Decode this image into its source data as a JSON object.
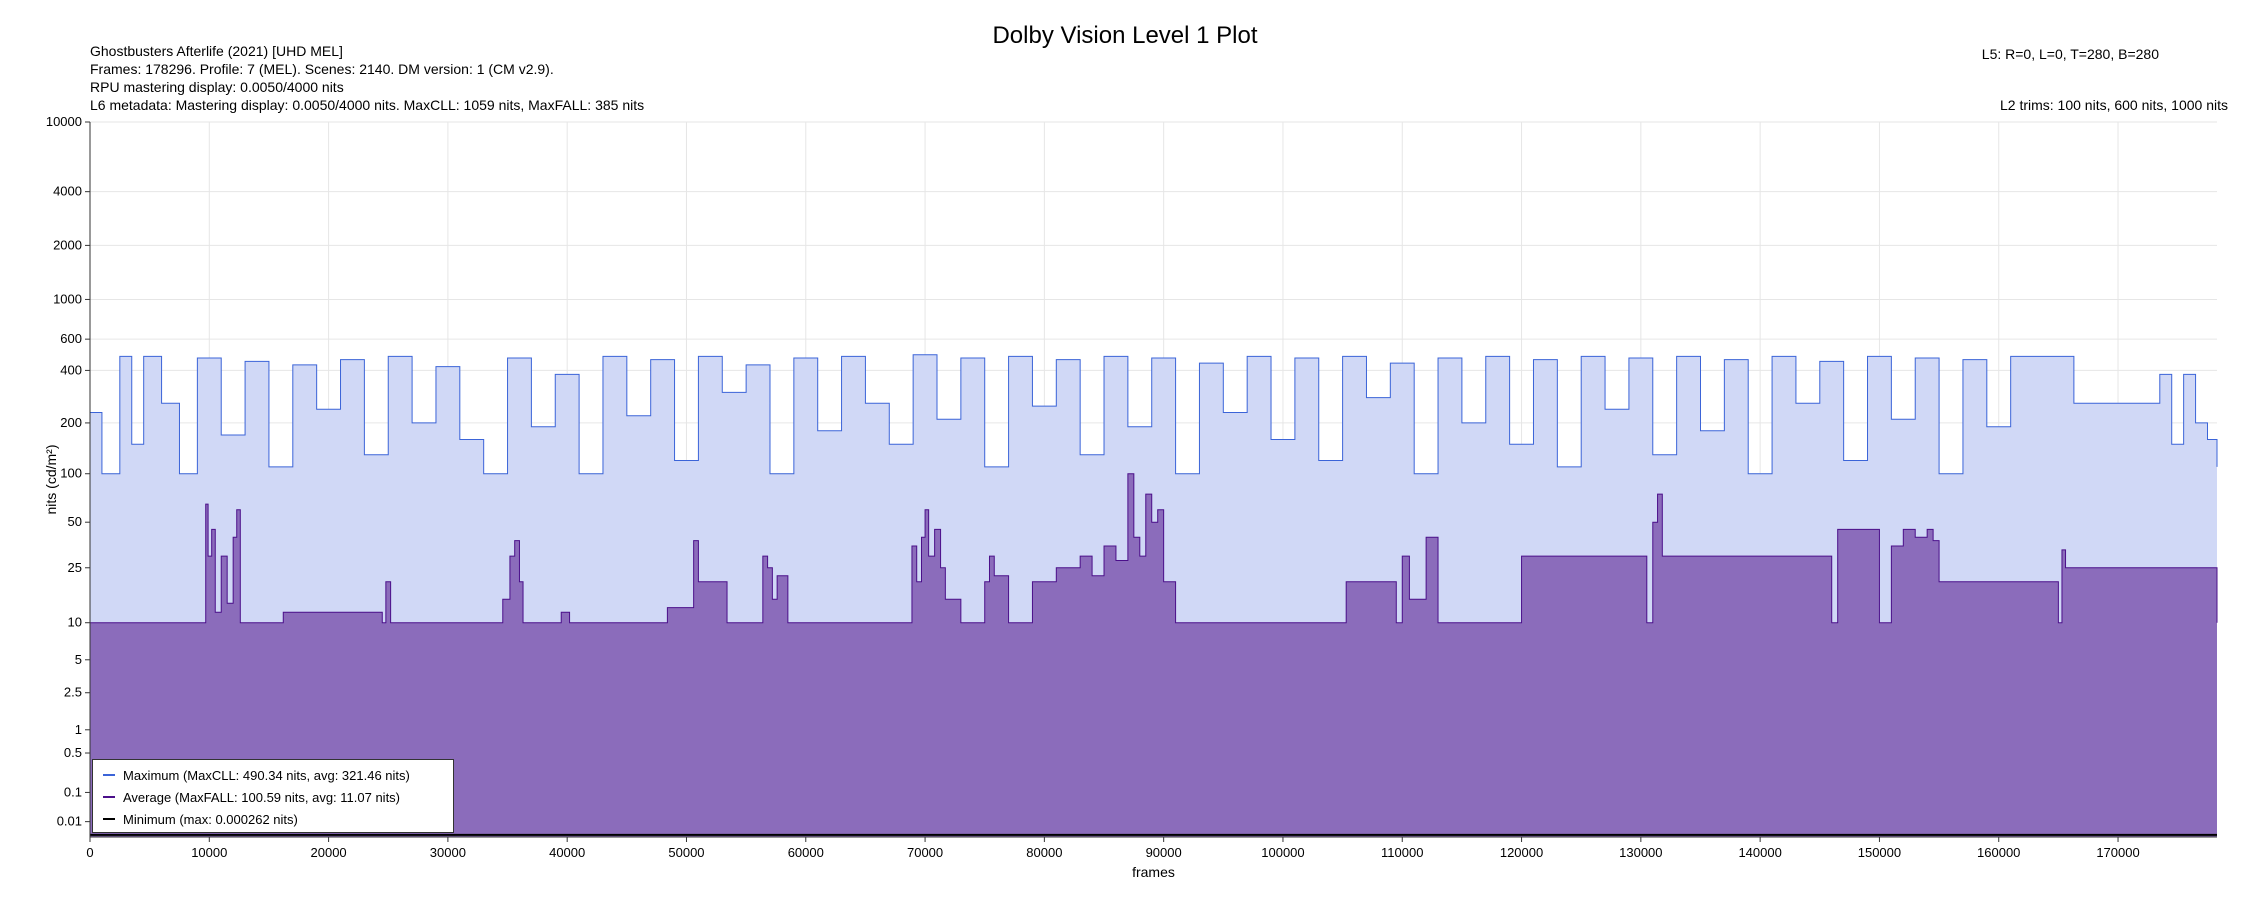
{
  "chart_data": {
    "type": "area",
    "title": "Dolby Vision Level 1 Plot",
    "info_lines": [
      "Ghostbusters Afterlife (2021) [UHD MEL]",
      "Frames: 178296. Profile: 7 (MEL). Scenes: 2140. DM version: 1 (CM v2.9).",
      "RPU mastering display: 0.0050/4000 nits",
      "L6 metadata: Mastering display: 0.0050/4000 nits. MaxCLL: 1059 nits, MaxFALL: 385 nits"
    ],
    "l5_text": "L5: R=0, L=0, T=280, B=280",
    "l2_text": "L2 trims: 100 nits, 600 nits, 1000 nits",
    "xlabel": "frames",
    "ylabel": "nits (cd/m²)",
    "x_scale": "linear",
    "y_scale": "pq",
    "xlim": [
      0,
      178296
    ],
    "ylim": [
      0,
      10000
    ],
    "x_ticks": [
      0,
      10000,
      20000,
      30000,
      40000,
      50000,
      60000,
      70000,
      80000,
      90000,
      100000,
      110000,
      120000,
      130000,
      140000,
      150000,
      160000,
      170000
    ],
    "y_ticks": [
      0.01,
      0.1,
      0.5,
      1,
      2.5,
      5,
      10,
      25,
      50,
      100,
      200,
      400,
      600,
      1000,
      2000,
      4000,
      10000
    ],
    "y_tick_labels": [
      "0.01",
      "0.1",
      "0.5",
      "1",
      "2.5",
      "5",
      "10",
      "25",
      "50",
      "100",
      "200",
      "400",
      "600",
      "1000",
      "2000",
      "4000",
      "10000"
    ],
    "grid": true,
    "legend_position": "lower-left",
    "series": [
      {
        "name": "Maximum (MaxCLL: 490.34 nits, avg: 321.46 nits)",
        "color": "#3b64d8",
        "fill": "#d0d8f6",
        "x": [
          0,
          900,
          1000,
          2500,
          3500,
          4500,
          6000,
          7500,
          9000,
          11000,
          13000,
          15000,
          17000,
          19000,
          21000,
          23000,
          25000,
          27000,
          29000,
          31000,
          33000,
          35000,
          37000,
          39000,
          41000,
          43000,
          45000,
          47000,
          49000,
          51000,
          53000,
          55000,
          57000,
          59000,
          61000,
          63000,
          65000,
          67000,
          69000,
          71000,
          73000,
          75000,
          77000,
          79000,
          81000,
          83000,
          85000,
          87000,
          89000,
          91000,
          93000,
          95000,
          97000,
          99000,
          101000,
          103000,
          105000,
          107000,
          109000,
          111000,
          113000,
          115000,
          117000,
          119000,
          121000,
          123000,
          125000,
          127000,
          129000,
          131000,
          133000,
          135000,
          137000,
          139000,
          141000,
          143000,
          145000,
          147000,
          149000,
          151000,
          153000,
          155000,
          157000,
          159000,
          161000,
          163000,
          165000,
          166300,
          166500,
          172000,
          173500,
          174500,
          175500,
          176500,
          177500,
          178296
        ],
        "values": [
          230,
          230,
          100,
          480,
          150,
          480,
          260,
          100,
          470,
          170,
          450,
          110,
          430,
          240,
          460,
          130,
          480,
          200,
          420,
          160,
          100,
          470,
          190,
          380,
          100,
          480,
          220,
          460,
          120,
          480,
          300,
          430,
          100,
          470,
          180,
          480,
          260,
          150,
          490,
          210,
          470,
          110,
          480,
          250,
          460,
          130,
          480,
          190,
          470,
          100,
          440,
          230,
          480,
          160,
          470,
          120,
          480,
          280,
          440,
          100,
          470,
          200,
          480,
          150,
          460,
          110,
          480,
          240,
          470,
          130,
          480,
          180,
          460,
          100,
          480,
          260,
          450,
          120,
          480,
          210,
          470,
          100,
          460,
          190,
          480,
          480,
          480,
          260,
          260,
          260,
          380,
          150,
          380,
          200,
          160,
          110
        ]
      },
      {
        "name": "Average (MaxFALL: 100.59 nits, avg: 11.07 nits)",
        "color": "#4b0f8a",
        "fill": "#8b6cbb",
        "x": [
          0,
          9500,
          9700,
          9900,
          10200,
          10500,
          11000,
          11500,
          12000,
          12300,
          12600,
          16000,
          16200,
          24500,
          24800,
          25200,
          34000,
          34600,
          35200,
          35600,
          36000,
          36300,
          39500,
          40200,
          48000,
          48400,
          50600,
          51000,
          53400,
          56000,
          56400,
          56800,
          57200,
          57600,
          58500,
          68500,
          68900,
          69300,
          69700,
          70000,
          70300,
          70800,
          71300,
          71700,
          73000,
          75000,
          75400,
          75800,
          77000,
          79000,
          81000,
          83000,
          84000,
          85000,
          86000,
          87000,
          87500,
          88000,
          88500,
          89000,
          89500,
          90000,
          91000,
          105000,
          105300,
          109500,
          110000,
          110600,
          112000,
          113000,
          120000,
          130500,
          131000,
          131400,
          131800,
          146000,
          146500,
          150000,
          151000,
          152000,
          153000,
          154000,
          154500,
          155000,
          165000,
          165300,
          165600,
          178296
        ],
        "values": [
          10,
          10,
          65,
          30,
          45,
          12,
          30,
          14,
          40,
          60,
          10,
          10,
          12,
          10,
          20,
          10,
          10,
          15,
          30,
          38,
          20,
          10,
          12,
          10,
          10,
          13,
          38,
          20,
          10,
          10,
          30,
          25,
          15,
          22,
          10,
          10,
          35,
          20,
          40,
          60,
          30,
          45,
          25,
          15,
          10,
          20,
          30,
          22,
          10,
          20,
          25,
          30,
          22,
          35,
          28,
          100,
          40,
          30,
          75,
          50,
          60,
          20,
          10,
          10,
          20,
          10,
          30,
          15,
          40,
          10,
          30,
          10,
          50,
          75,
          30,
          10,
          45,
          10,
          35,
          45,
          40,
          45,
          38,
          20,
          10,
          33,
          25,
          10
        ]
      },
      {
        "name": "Minimum (max: 0.000262 nits)",
        "color": "#000000",
        "x": [
          0,
          178296
        ],
        "values": [
          0.000262,
          0.000262
        ]
      }
    ]
  }
}
